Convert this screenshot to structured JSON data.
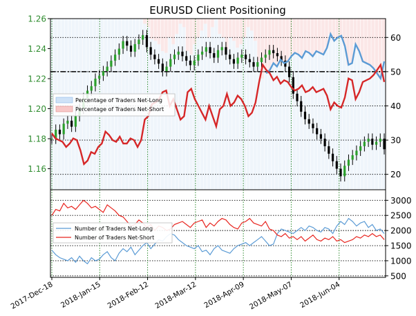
{
  "chart_data": [
    {
      "type": "line",
      "title": "EURUSD Client Positioning",
      "x_labels": [
        "2017-Dec-18",
        "2018-Jan-15",
        "2018-Feb-12",
        "2018-Mar-12",
        "2018-Apr-09",
        "2018-May-07",
        "2018-Jun-04"
      ],
      "left_axis": {
        "ticks": [
          "1.16",
          "1.18",
          "1.20",
          "1.22",
          "1.24",
          "1.26"
        ],
        "ylim": [
          1.146,
          1.26
        ],
        "color": "#2e8b2e"
      },
      "right_axis": {
        "ticks": [
          "20",
          "30",
          "40",
          "50",
          "60"
        ],
        "ylim": [
          15.5,
          65.5
        ]
      },
      "reference_line": 50,
      "legend": {
        "position": "middle-left",
        "entries": [
          "Percentage of Traders Net-Long",
          "Percentage of Traders Net-Short"
        ]
      },
      "price_candles": [
        1.18,
        1.186,
        1.183,
        1.19,
        1.192,
        1.188,
        1.195,
        1.2,
        1.207,
        1.212,
        1.215,
        1.22,
        1.222,
        1.225,
        1.228,
        1.232,
        1.236,
        1.24,
        1.245,
        1.242,
        1.238,
        1.243,
        1.246,
        1.249,
        1.241,
        1.236,
        1.233,
        1.23,
        1.225,
        1.228,
        1.233,
        1.236,
        1.238,
        1.235,
        1.232,
        1.229,
        1.232,
        1.236,
        1.238,
        1.241,
        1.237,
        1.234,
        1.239,
        1.241,
        1.236,
        1.233,
        1.23,
        1.234,
        1.236,
        1.233,
        1.231,
        1.228,
        1.231,
        1.234,
        1.236,
        1.239,
        1.237,
        1.235,
        1.232,
        1.228,
        1.221,
        1.21,
        1.205,
        1.198,
        1.193,
        1.19,
        1.187,
        1.183,
        1.18,
        1.175,
        1.17,
        1.165,
        1.16,
        1.155,
        1.162,
        1.166,
        1.169,
        1.172,
        1.175,
        1.178,
        1.18,
        1.176,
        1.178,
        1.18,
        1.173
      ],
      "series": [
        {
          "name": "Percentage of Traders Net-Long",
          "color": "#5b9bd5",
          "values": [
            null,
            null,
            null,
            null,
            null,
            null,
            null,
            null,
            null,
            null,
            null,
            null,
            null,
            null,
            null,
            null,
            null,
            null,
            null,
            null,
            null,
            null,
            null,
            null,
            null,
            null,
            null,
            null,
            null,
            null,
            null,
            null,
            null,
            null,
            null,
            null,
            null,
            null,
            null,
            null,
            null,
            null,
            null,
            null,
            null,
            null,
            null,
            null,
            null,
            null,
            null,
            null,
            null,
            null,
            null,
            null,
            null,
            null,
            null,
            null,
            49.5,
            50.5,
            52.5,
            51.5,
            53.5,
            52.5,
            53.0,
            54.5,
            55.5,
            55.0,
            54.0,
            56.0,
            55.5,
            54.5,
            56.0,
            55.5,
            55.0,
            57.0,
            61.0,
            59.0,
            60.0,
            60.5,
            57.5,
            52.0,
            52.5,
            58.0,
            56.0,
            53.0,
            52.5,
            52.0,
            51.0,
            49.5,
            48.0,
            53.0
          ]
        },
        {
          "name": "Percentage of Traders Net-Short",
          "color": "#d62728",
          "values": [
            32.0,
            30.5,
            30.0,
            29.5,
            28.0,
            29.0,
            30.5,
            30.0,
            27.0,
            23.0,
            24.0,
            26.5,
            26.0,
            28.0,
            29.0,
            32.5,
            31.5,
            30.0,
            29.5,
            31.0,
            29.0,
            29.0,
            30.5,
            30.0,
            28.0,
            30.0,
            36.0,
            37.0,
            40.5,
            41.0,
            42.0,
            44.0,
            44.5,
            40.0,
            42.0,
            39.0,
            36.0,
            37.0,
            44.0,
            45.0,
            42.0,
            40.0,
            38.0,
            36.0,
            40.0,
            37.0,
            34.0,
            39.0,
            40.0,
            43.5,
            40.0,
            41.0,
            43.0,
            42.0,
            40.0,
            37.0,
            38.0,
            41.0,
            47.0,
            52.0,
            50.5,
            49.5,
            47.5,
            48.5,
            46.5,
            47.5,
            47.0,
            45.5,
            44.5,
            45.0,
            46.0,
            44.0,
            44.5,
            45.5,
            44.0,
            44.5,
            45.0,
            43.0,
            39.0,
            41.0,
            40.0,
            39.5,
            42.5,
            48.0,
            47.5,
            42.0,
            44.0,
            47.0,
            47.5,
            48.0,
            49.0,
            50.5,
            52.0,
            47.0
          ]
        }
      ]
    },
    {
      "type": "line",
      "right_axis": {
        "ticks": [
          "500",
          "1000",
          "1500",
          "2000",
          "2500",
          "3000"
        ],
        "ylim": [
          450,
          3350
        ]
      },
      "legend": {
        "position": "middle-left",
        "entries": [
          "Number of Traders Net-Long",
          "Number of Traders Net-Short"
        ]
      },
      "series": [
        {
          "name": "Number of Traders Net-Long",
          "color": "#5b9bd5",
          "values": [
            1350,
            1200,
            1100,
            1050,
            1000,
            1100,
            950,
            1150,
            1000,
            900,
            1100,
            1000,
            1050,
            1200,
            1300,
            1100,
            1000,
            1250,
            1400,
            1300,
            1450,
            1200,
            1350,
            1500,
            1600,
            1400,
            1550,
            1700,
            1650,
            1800,
            1900,
            1850,
            1700,
            1600,
            1500,
            1450,
            1400,
            1500,
            1300,
            1350,
            1200,
            1400,
            1500,
            1350,
            1300,
            1250,
            1400,
            1500,
            1550,
            1600,
            1500,
            1600,
            1700,
            1800,
            1650,
            1500,
            1550,
            1900,
            2050,
            2000,
            1950,
            1900,
            2000,
            2100,
            2000,
            2150,
            2100,
            2000,
            1950,
            2100,
            2050,
            1900,
            2150,
            2300,
            2200,
            2400,
            2300,
            2150,
            2250,
            2300,
            2100,
            2200,
            2000,
            2050,
            1900
          ]
        },
        {
          "name": "Number of Traders Net-Short",
          "color": "#e8251f",
          "values": [
            2500,
            2700,
            2650,
            2900,
            2750,
            2800,
            2700,
            2850,
            3000,
            2900,
            2750,
            2800,
            2700,
            2600,
            2850,
            2750,
            2650,
            2500,
            2450,
            2300,
            2150,
            2200,
            2350,
            2250,
            2100,
            2200,
            2000,
            2150,
            2100,
            2000,
            2050,
            2200,
            2250,
            2300,
            2200,
            2100,
            2250,
            2300,
            2350,
            2100,
            2250,
            2150,
            2300,
            2400,
            2350,
            2200,
            2100,
            2050,
            2250,
            2300,
            2400,
            2250,
            2200,
            2150,
            2300,
            2050,
            2000,
            1850,
            1800,
            1900,
            1750,
            1800,
            1700,
            1800,
            1650,
            1750,
            1850,
            1700,
            1650,
            1750,
            1700,
            1800,
            1650,
            1700,
            1600,
            1650,
            1700,
            1800,
            1750,
            1850,
            1800,
            1900,
            1800,
            1850,
            1700
          ]
        }
      ]
    }
  ]
}
